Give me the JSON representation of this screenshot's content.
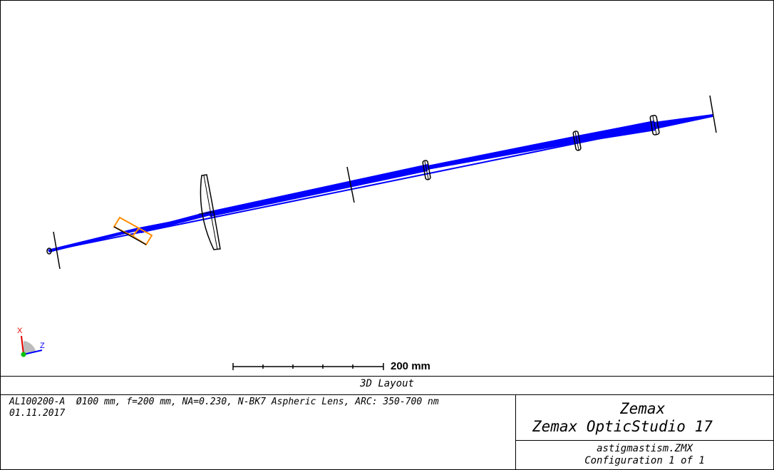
{
  "plot": {
    "scale_label": "200 mm",
    "axis_x_label": "X",
    "axis_z_label": "Z",
    "beam_color": "#0000ff",
    "element_color": "#000000",
    "prism_color": "#ff8c00"
  },
  "footer": {
    "title": "3D Layout",
    "description": "AL100200-A  Ø100 mm, f=200 mm, NA=0.230, N-BK7 Aspheric Lens, ARC: 350-700 nm",
    "date": "01.11.2017",
    "company": "Zemax",
    "product": "Zemax OpticStudio 17",
    "filename": "astigmastism.ZMX",
    "configuration": "Configuration 1 of 1"
  }
}
